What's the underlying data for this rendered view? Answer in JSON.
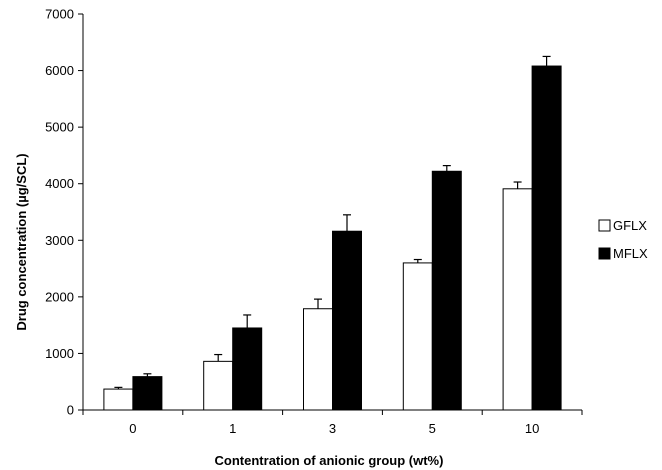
{
  "chart_data": {
    "type": "bar",
    "title": "",
    "xlabel": "Contentration of anionic group (wt%)",
    "ylabel": "Drug concentration (µg/SCL)",
    "categories": [
      "0",
      "1",
      "3",
      "5",
      "10"
    ],
    "ylim": [
      0,
      7000
    ],
    "yticks": [
      0,
      1000,
      2000,
      3000,
      4000,
      5000,
      6000,
      7000
    ],
    "series": [
      {
        "name": "GFLX",
        "color": "#ffffff",
        "values": [
          370,
          860,
          1790,
          2600,
          3910
        ],
        "errors": [
          30,
          120,
          170,
          60,
          120
        ]
      },
      {
        "name": "MFLX",
        "color": "#000000",
        "values": [
          590,
          1450,
          3160,
          4220,
          6080
        ],
        "errors": [
          50,
          230,
          290,
          100,
          170
        ]
      }
    ],
    "legend_position": "right",
    "grid": false
  }
}
